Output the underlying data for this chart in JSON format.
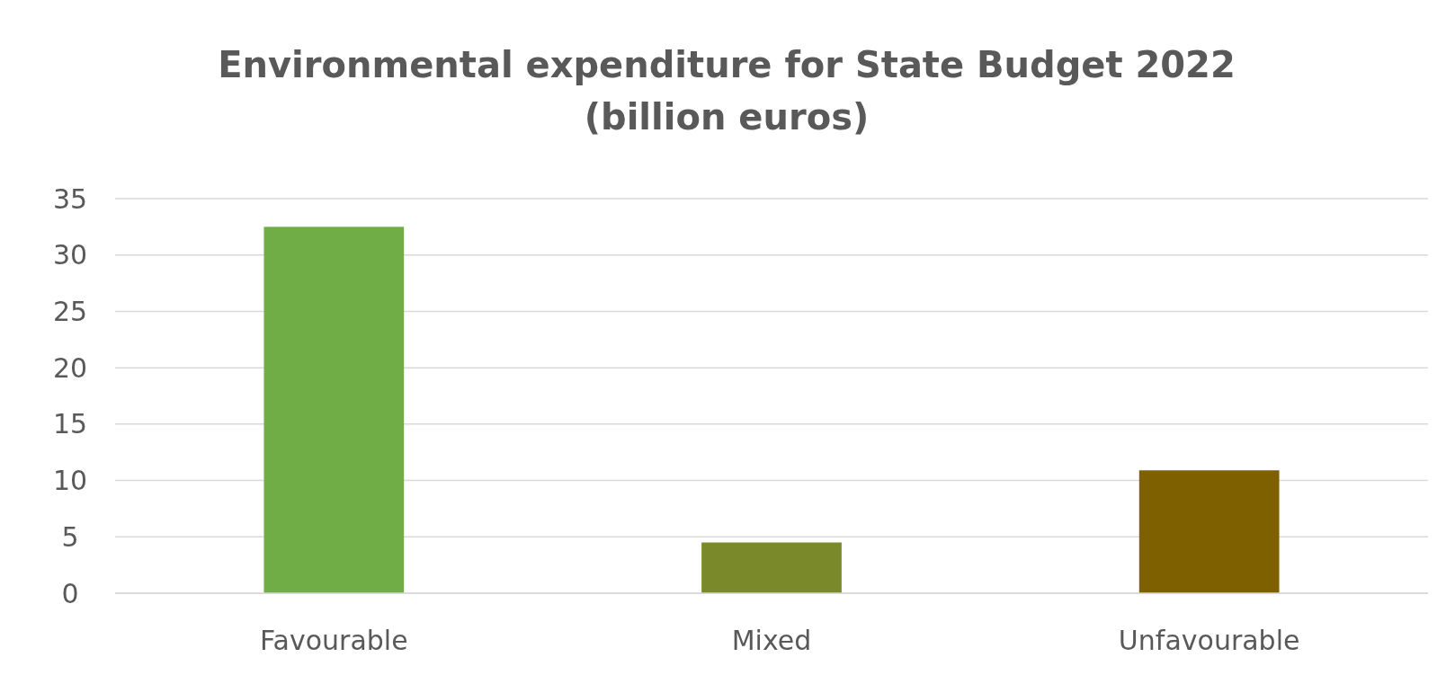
{
  "chart_data": {
    "type": "bar",
    "title": "Environmental expenditure for State Budget 2022\n(billion euros)",
    "categories": [
      "Favourable",
      "Mixed",
      "Unfavourable"
    ],
    "values": [
      32.5,
      4.5,
      10.9
    ],
    "colors": [
      "#70ad47",
      "#7a8a2a",
      "#7f6000"
    ],
    "ylim": [
      0,
      35
    ],
    "yticks": [
      0,
      5,
      10,
      15,
      20,
      25,
      30,
      35
    ],
    "grid": "y"
  }
}
